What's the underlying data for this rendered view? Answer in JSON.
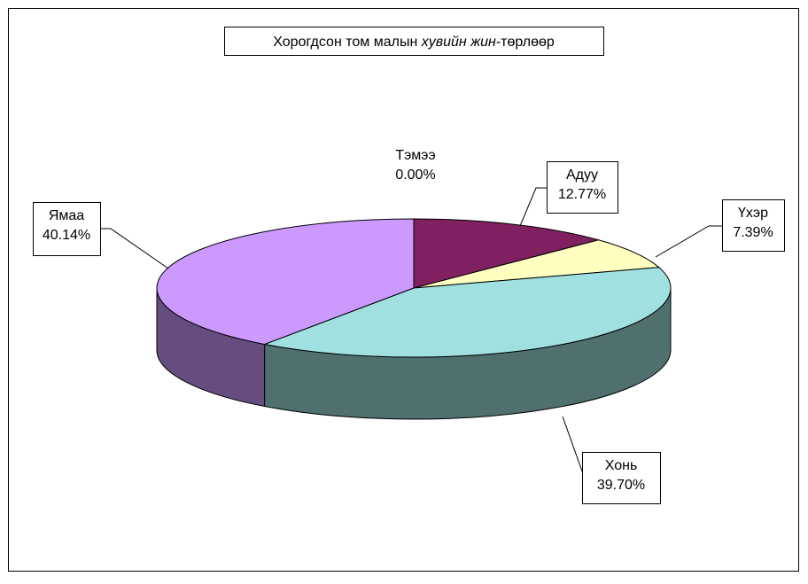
{
  "chart_data": {
    "type": "pie3d",
    "title": [
      "Хорогдсон том малын ",
      "хувийн жин",
      "-төрлөөр"
    ],
    "categories": [
      "Тэмээ",
      "Адуу",
      "Үхэр",
      "Хонь",
      "Ямаа"
    ],
    "values": [
      0,
      12.77,
      7.39,
      39.7,
      40.14
    ],
    "value_labels": [
      "0.00%",
      "12.77%",
      "7.39%",
      "39.70%",
      "40.14%"
    ],
    "colors": [
      "#808080",
      "#802060",
      "#ffffc0",
      "#a0e0e0",
      "#cc99ff"
    ]
  }
}
